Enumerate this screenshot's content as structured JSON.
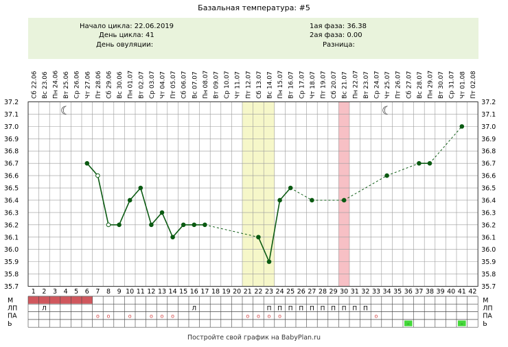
{
  "title": "Базальная температура: #5",
  "info": {
    "cycle_start": "Начало цикла: 22.06.2019",
    "cycle_day": "День цикла: 41",
    "ovulation_day": "День овуляции:",
    "phase1": "1ая фаза: 36.38",
    "phase2": "2ая фаза: 0.00",
    "difference": "Разница:"
  },
  "footer": "Постройте свой график на BabyPlan.ru",
  "colors": {
    "line": "#0b5a12",
    "grid": "#9a9a9a",
    "highlight_yellow": "#f6f7c9",
    "highlight_red": "#f7c0c5",
    "period_bar": "#d0575d",
    "green_mark": "#44d83a"
  },
  "chart_data": {
    "type": "line",
    "x_days": [
      1,
      2,
      3,
      4,
      5,
      6,
      7,
      8,
      9,
      10,
      11,
      12,
      13,
      14,
      15,
      16,
      17,
      18,
      19,
      20,
      21,
      22,
      23,
      24,
      25,
      26,
      27,
      28,
      29,
      30,
      31,
      32,
      33,
      34,
      35,
      36,
      37,
      38,
      39,
      40,
      41,
      42
    ],
    "dates": [
      "Сб 22.06",
      "Вс 23.06",
      "Пн 24.06",
      "Вт 25.06",
      "Ср 26.06",
      "Чт 27.06",
      "Пт 28.06",
      "Сб 29.06",
      "Вс 30.06",
      "Пн 01.07",
      "Вт 02.07",
      "Ср 03.07",
      "Чт 04.07",
      "Пт 05.07",
      "Сб 06.07",
      "Вс 07.07",
      "Пн 08.07",
      "Вт 09.07",
      "Ср 10.07",
      "Чт 11.07",
      "Пт 12.07",
      "Сб 13.07",
      "Вс 14.07",
      "Пн 15.07",
      "Вт 16.07",
      "Ср 17.07",
      "Чт 18.07",
      "Пт 19.07",
      "Сб 20.07",
      "Вс 21.07",
      "Пн 22.07",
      "Вт 23.07",
      "Ср 24.07",
      "Чт 25.07",
      "Пт 26.07",
      "Сб 27.07",
      "Вс 28.07",
      "Пн 29.07",
      "Вт 30.07",
      "Ср 31.07",
      "Чт 01.08",
      "Пт 02.08"
    ],
    "y_ticks": [
      "35.7",
      "35.8",
      "35.9",
      "36.0",
      "36.1",
      "36.2",
      "36.3",
      "36.4",
      "36.5",
      "36.6",
      "36.7",
      "36.8",
      "36.9",
      "37.0",
      "37.1",
      "37.2"
    ],
    "ylim": [
      35.7,
      37.2
    ],
    "points": [
      {
        "day": 6,
        "temp": 36.7,
        "hollow": false
      },
      {
        "day": 7,
        "temp": 36.6,
        "hollow": true
      },
      {
        "day": 8,
        "temp": 36.2,
        "hollow": true
      },
      {
        "day": 9,
        "temp": 36.2,
        "hollow": false
      },
      {
        "day": 10,
        "temp": 36.4,
        "hollow": false
      },
      {
        "day": 11,
        "temp": 36.5,
        "hollow": false
      },
      {
        "day": 12,
        "temp": 36.2,
        "hollow": false
      },
      {
        "day": 13,
        "temp": 36.3,
        "hollow": false
      },
      {
        "day": 14,
        "temp": 36.1,
        "hollow": false
      },
      {
        "day": 15,
        "temp": 36.2,
        "hollow": false
      },
      {
        "day": 16,
        "temp": 36.2,
        "hollow": false
      },
      {
        "day": 17,
        "temp": 36.2,
        "hollow": false
      },
      {
        "day": 22,
        "temp": 36.1,
        "hollow": false
      },
      {
        "day": 23,
        "temp": 35.9,
        "hollow": false
      },
      {
        "day": 24,
        "temp": 36.4,
        "hollow": false
      },
      {
        "day": 25,
        "temp": 36.5,
        "hollow": false
      },
      {
        "day": 27,
        "temp": 36.4,
        "hollow": false
      },
      {
        "day": 30,
        "temp": 36.4,
        "hollow": false
      },
      {
        "day": 34,
        "temp": 36.6,
        "hollow": false
      },
      {
        "day": 37,
        "temp": 36.7,
        "hollow": false
      },
      {
        "day": 38,
        "temp": 36.7,
        "hollow": false
      },
      {
        "day": 41,
        "temp": 37.0,
        "hollow": false
      }
    ],
    "highlight_yellow_days": [
      21,
      23
    ],
    "highlight_red_days": [
      30,
      30
    ],
    "moon_days": [
      4,
      34
    ],
    "rows": [
      {
        "label": "М",
        "period_days": [
          1,
          6
        ]
      },
      {
        "label": "ЛП",
        "marks": [
          {
            "day": 2,
            "text": "Л"
          },
          {
            "day": 16,
            "text": "Л"
          },
          {
            "day": 23,
            "text": "П"
          },
          {
            "day": 24,
            "text": "П"
          },
          {
            "day": 25,
            "text": "П"
          },
          {
            "day": 26,
            "text": "П"
          },
          {
            "day": 27,
            "text": "П"
          },
          {
            "day": 28,
            "text": "П"
          },
          {
            "day": 29,
            "text": "П"
          },
          {
            "day": 30,
            "text": "П"
          },
          {
            "day": 31,
            "text": "П"
          },
          {
            "day": 32,
            "text": "П"
          }
        ]
      },
      {
        "label": "ПА",
        "marks": [
          {
            "day": 7,
            "text": "o"
          },
          {
            "day": 8,
            "text": "o"
          },
          {
            "day": 10,
            "text": "o"
          },
          {
            "day": 12,
            "text": "o"
          },
          {
            "day": 13,
            "text": "o"
          },
          {
            "day": 14,
            "text": "o"
          },
          {
            "day": 21,
            "text": "o"
          },
          {
            "day": 22,
            "text": "o"
          },
          {
            "day": 23,
            "text": "o"
          },
          {
            "day": 24,
            "text": "o"
          },
          {
            "day": 33,
            "text": "o"
          }
        ]
      },
      {
        "label": "Ь",
        "green_days": [
          36,
          41
        ]
      }
    ]
  }
}
